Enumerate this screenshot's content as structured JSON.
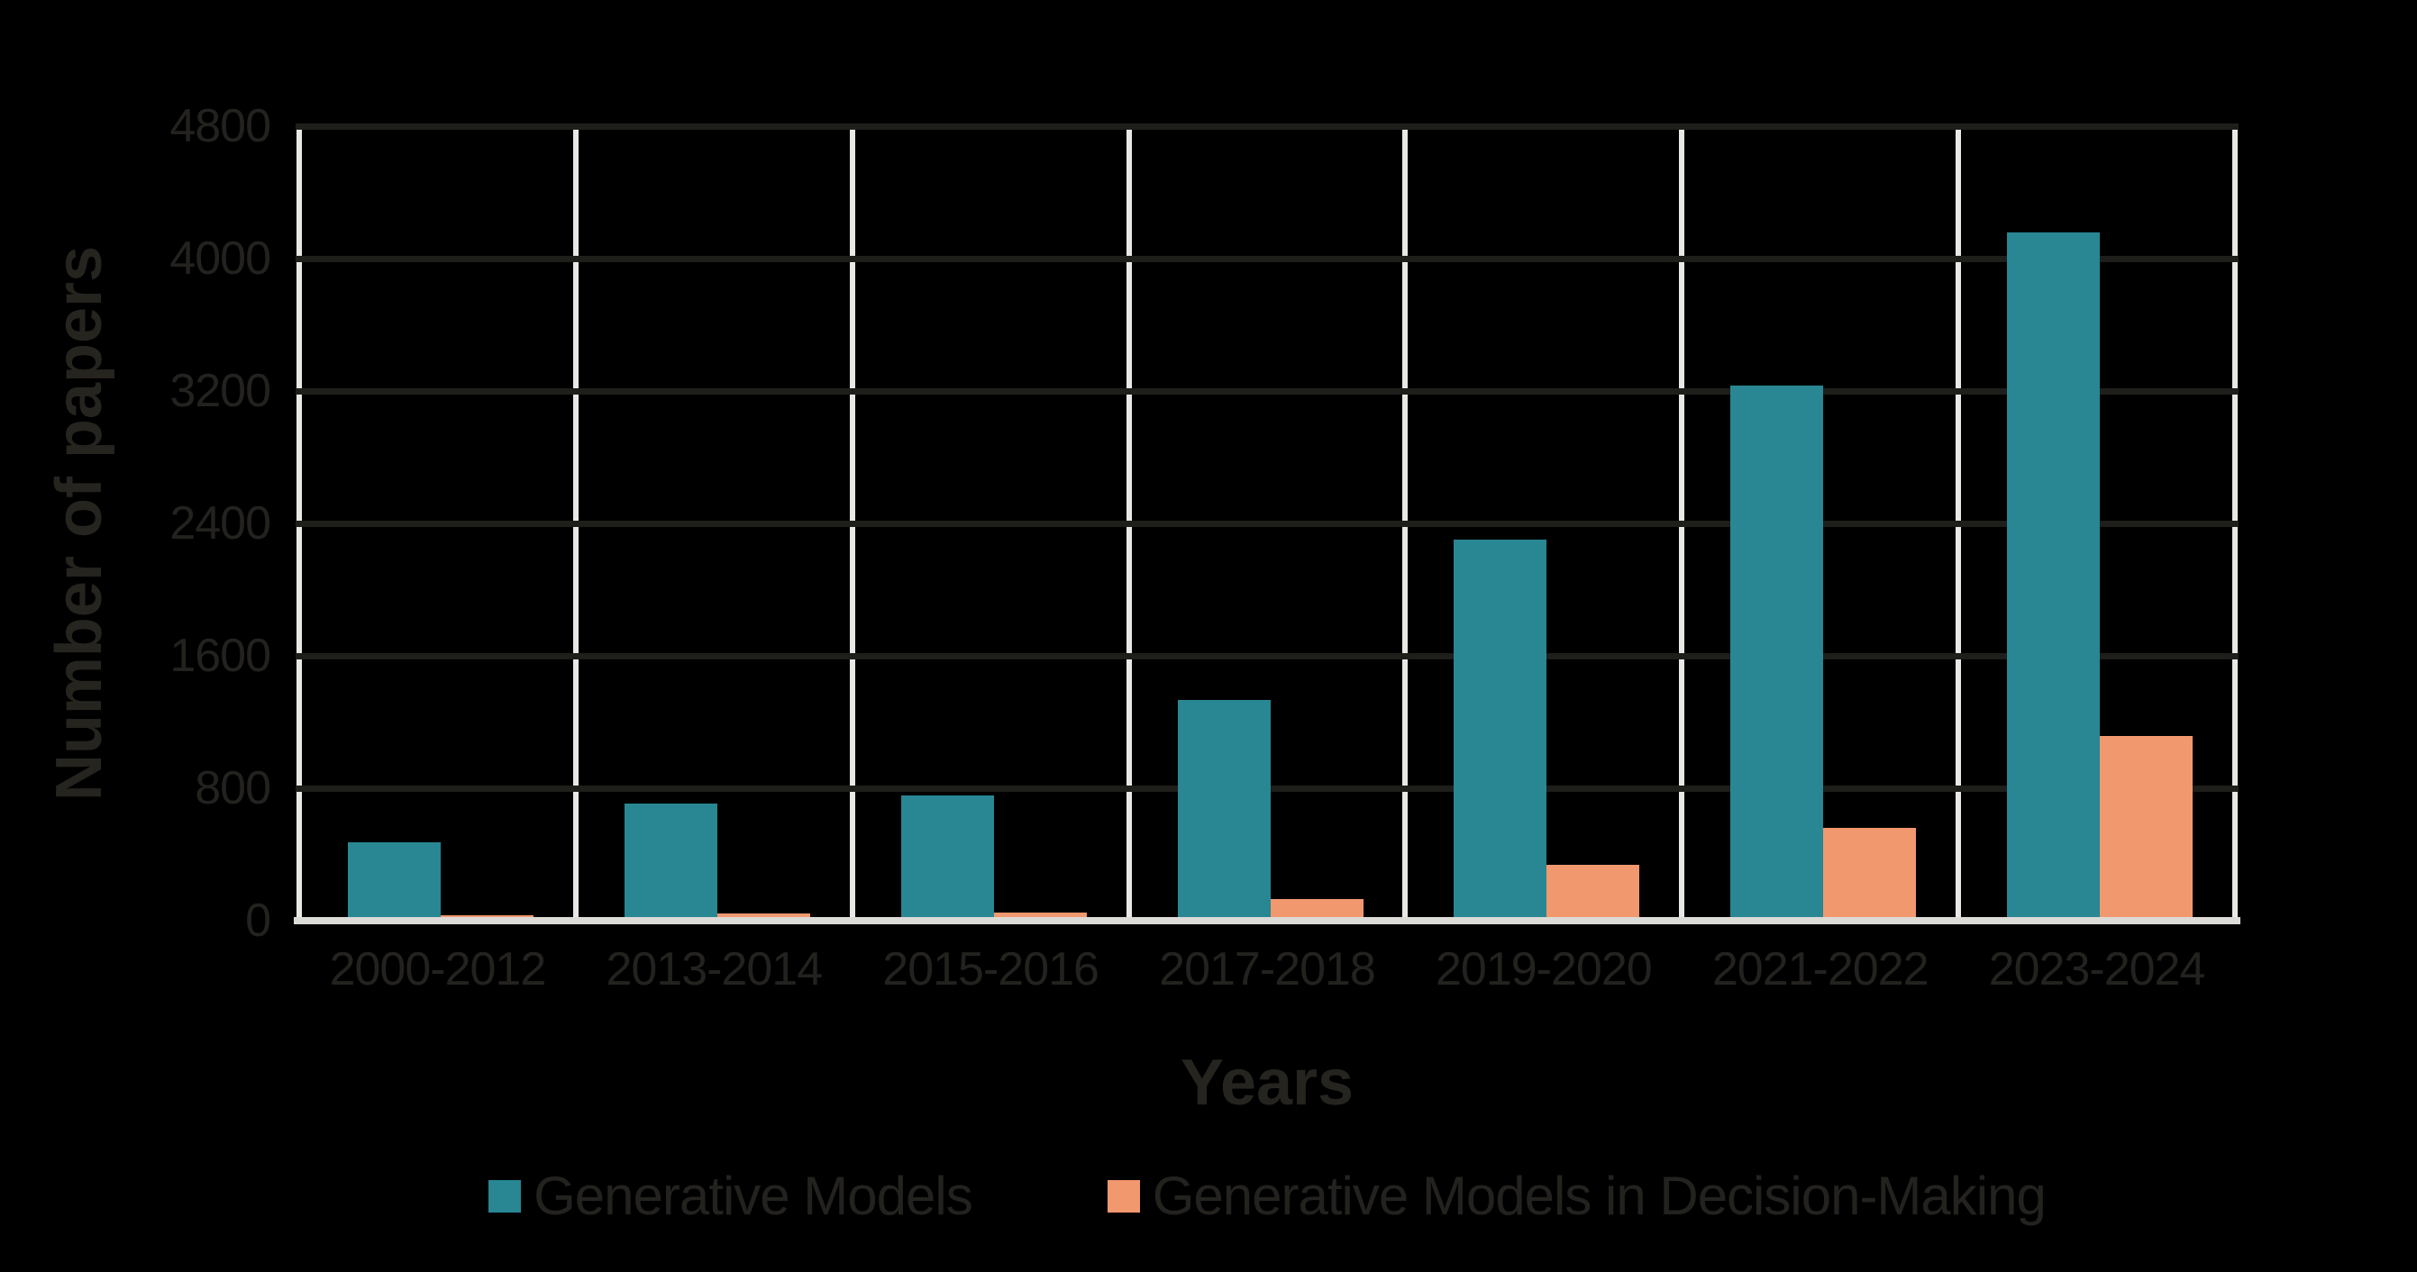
{
  "background_color": "#000000",
  "chart_data": {
    "type": "bar",
    "title": "",
    "xlabel": "Years",
    "ylabel": "Number of papers",
    "categories": [
      "2000-2012",
      "2013-2014",
      "2015-2016",
      "2017-2018",
      "2019-2020",
      "2021-2022",
      "2023-2024"
    ],
    "series": [
      {
        "name": "Generative Models",
        "color": "#288792",
        "values": [
          475,
          710,
          755,
          1335,
          2300,
          3230,
          4160
        ]
      },
      {
        "name": "Generative Models in Decision-Making",
        "color": "#F2986F",
        "values": [
          30,
          45,
          50,
          130,
          340,
          560,
          1115
        ]
      }
    ],
    "ylim": [
      0,
      4800
    ],
    "yticks": [
      0,
      800,
      1600,
      2400,
      3200,
      4000,
      4800
    ],
    "grid": {
      "horizontal_gridline_color": "#1E1E1B",
      "vertical_separator_color": "#E9E8E4",
      "baseline_color": "#DCDBD7",
      "text_color": "#23221F"
    },
    "legend_position": "bottom-center"
  }
}
